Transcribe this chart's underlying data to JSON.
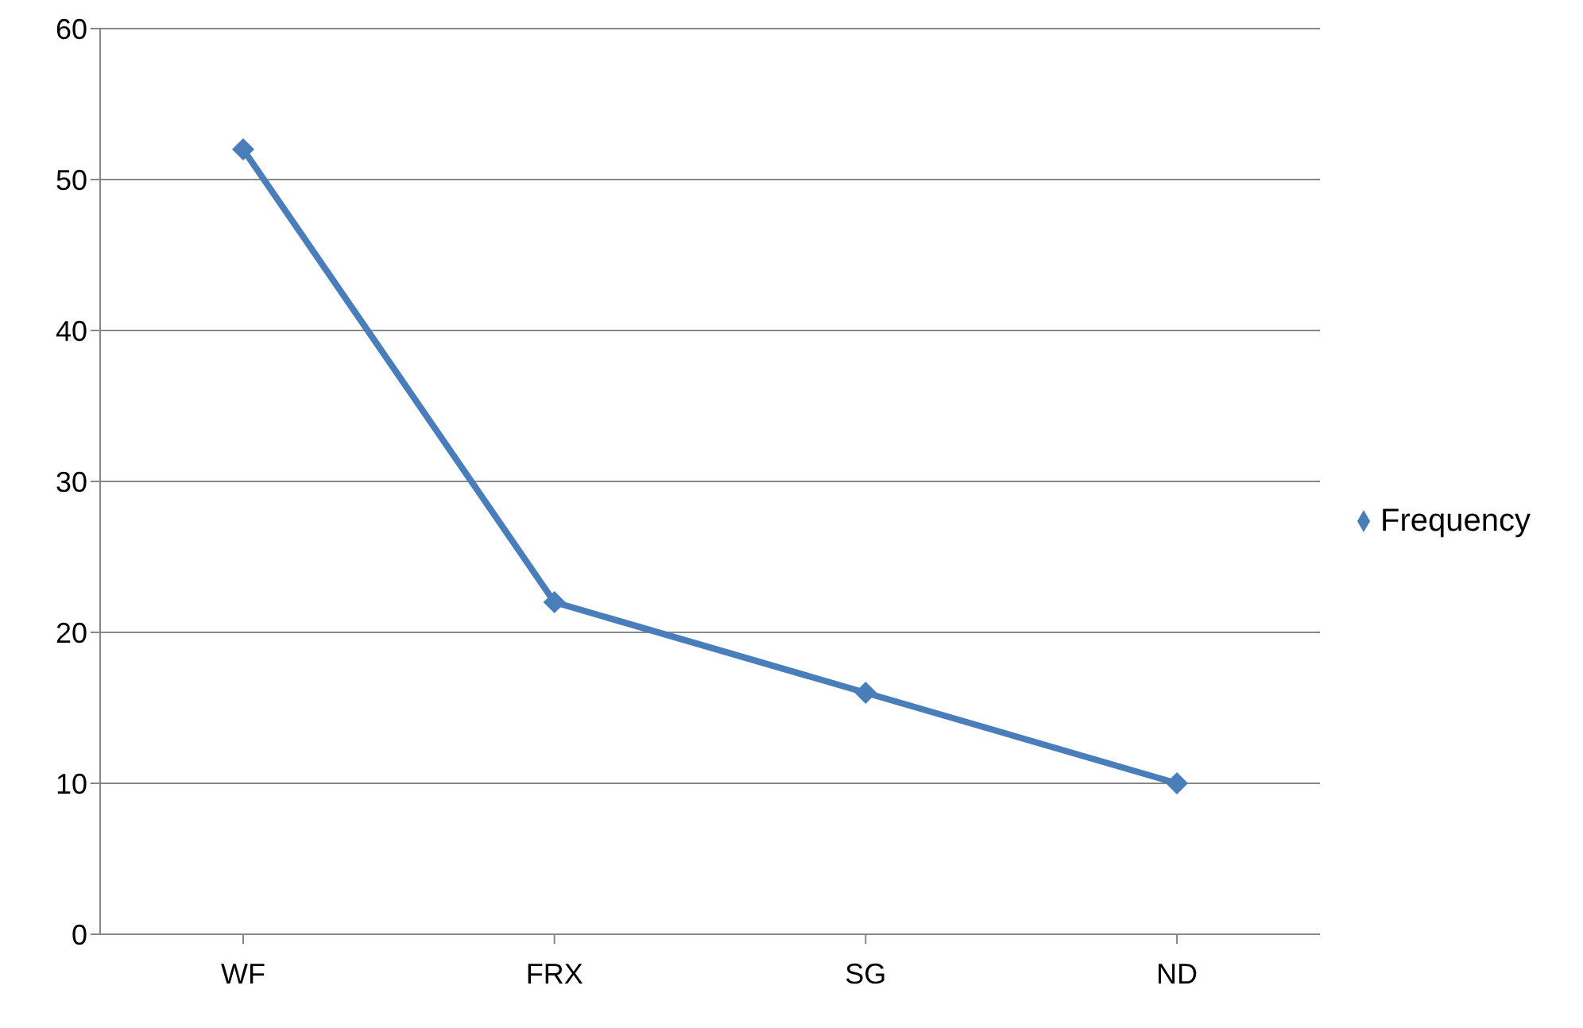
{
  "chart_data": {
    "type": "line",
    "categories": [
      "WF",
      "FRX",
      "SG",
      "ND"
    ],
    "series": [
      {
        "name": "Frequency",
        "color": "#4a7ebb",
        "values": [
          52,
          22,
          16,
          10
        ]
      }
    ],
    "ylim": [
      0,
      60
    ],
    "yticks": [
      0,
      10,
      20,
      30,
      40,
      50,
      60
    ],
    "grid": "y",
    "legend": "right",
    "marker": "diamond",
    "line_style": "solid"
  }
}
